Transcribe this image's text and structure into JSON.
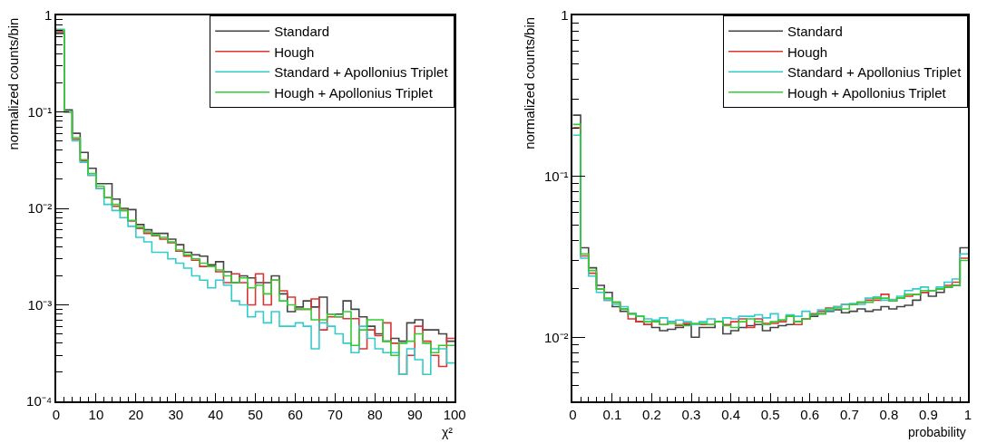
{
  "chart_data": [
    {
      "type": "histogram",
      "xlabel": "χ²",
      "ylabel": "normalized counts/bin",
      "log": "y",
      "legend": "top right",
      "grid": false,
      "bins": [
        0,
        2,
        4,
        6,
        8,
        10,
        12,
        14,
        16,
        18,
        20,
        22,
        24,
        26,
        28,
        30,
        32,
        34,
        36,
        38,
        40,
        42,
        44,
        46,
        48,
        50,
        52,
        54,
        56,
        58,
        60,
        62,
        64,
        66,
        68,
        70,
        72,
        74,
        76,
        78,
        80,
        82,
        84,
        86,
        88,
        90,
        92,
        94,
        96,
        98,
        100
      ],
      "xlim": [
        0,
        100
      ],
      "xticks": [
        0,
        10,
        20,
        30,
        40,
        50,
        60,
        70,
        80,
        90,
        100
      ],
      "ylim": [
        0.0001,
        1
      ],
      "yticks": [
        {
          "value": 0.0001,
          "label": "10⁻⁴"
        },
        {
          "value": 0.001,
          "label": "10⁻³"
        },
        {
          "value": 0.01,
          "label": "10⁻²"
        },
        {
          "value": 0.1,
          "label": "10⁻¹"
        },
        1
      ],
      "series": [
        {
          "name": "Standard",
          "color": "#444444",
          "values": [
            0.65,
            0.105,
            0.06,
            0.038,
            0.026,
            0.018,
            0.018,
            0.0125,
            0.01,
            0.0097,
            0.0068,
            0.006,
            0.0055,
            0.0055,
            0.0048,
            0.0042,
            0.0035,
            0.0033,
            0.0032,
            0.0026,
            0.0028,
            0.0022,
            0.0017,
            0.002,
            0.0019,
            0.0017,
            0.0017,
            0.002,
            0.0013,
            0.00085,
            0.00095,
            0.0011,
            0.00095,
            0.0012,
            0.0008,
            0.0008,
            0.0011,
            0.0009,
            0.00075,
            0.0006,
            0.0005,
            0.00042,
            0.00045,
            0.00042,
            0.00065,
            0.0007,
            0.00055,
            0.00055,
            0.0005,
            0.00042
          ]
        },
        {
          "name": "Hough",
          "color": "#dd3333",
          "values": [
            0.68,
            0.1,
            0.052,
            0.031,
            0.022,
            0.016,
            0.013,
            0.0105,
            0.0095,
            0.0074,
            0.0062,
            0.0055,
            0.0052,
            0.0048,
            0.0044,
            0.0036,
            0.0032,
            0.0029,
            0.0025,
            0.0025,
            0.0022,
            0.0017,
            0.0021,
            0.0017,
            0.001,
            0.0021,
            0.001,
            0.0018,
            0.0014,
            0.0012,
            0.0009,
            0.0009,
            0.00115,
            0.00055,
            0.00075,
            0.00075,
            0.00072,
            0.00072,
            0.00035,
            0.00055,
            0.00048,
            0.00065,
            0.0004,
            0.00019,
            0.0003,
            0.0006,
            0.00042,
            0.0003,
            0.00023,
            0.00045
          ]
        },
        {
          "name": "Standard + Apollonius Triplet",
          "color": "#33cccc",
          "values": [
            0.72,
            0.1,
            0.05,
            0.03,
            0.022,
            0.016,
            0.011,
            0.0095,
            0.008,
            0.0065,
            0.005,
            0.0045,
            0.0035,
            0.0035,
            0.003,
            0.0027,
            0.0024,
            0.002,
            0.0018,
            0.0015,
            0.0018,
            0.0016,
            0.0011,
            0.001,
            0.00075,
            0.00085,
            0.00065,
            0.00085,
            0.0006,
            0.0006,
            0.00065,
            0.0006,
            0.00035,
            0.00065,
            0.0006,
            0.0005,
            0.0004,
            0.00032,
            0.0006,
            0.00045,
            0.00035,
            0.00032,
            0.00032,
            0.00019,
            0.00035,
            0.00027,
            0.00019,
            0.00035,
            0.00035,
            0.00025
          ]
        },
        {
          "name": "Hough + Apollonius Triplet",
          "color": "#33cc33",
          "values": [
            0.7,
            0.1,
            0.054,
            0.032,
            0.023,
            0.017,
            0.013,
            0.011,
            0.0095,
            0.0075,
            0.0064,
            0.0057,
            0.0053,
            0.005,
            0.0045,
            0.0037,
            0.0033,
            0.003,
            0.0027,
            0.0025,
            0.0023,
            0.002,
            0.0017,
            0.0019,
            0.0015,
            0.0016,
            0.0013,
            0.0018,
            0.0011,
            0.001,
            0.0009,
            0.0009,
            0.0007,
            0.0007,
            0.0008,
            0.00075,
            0.00085,
            0.00038,
            0.00055,
            0.0007,
            0.0007,
            0.00042,
            0.0003,
            0.0004,
            0.00042,
            0.0005,
            0.0004,
            0.00032,
            0.00038,
            0.00038
          ]
        }
      ]
    },
    {
      "type": "histogram",
      "xlabel": "probability",
      "ylabel": "normalized counts/bin",
      "log": "y",
      "legend": "top right",
      "grid": false,
      "bins": [
        0,
        0.02,
        0.04,
        0.06,
        0.08,
        0.1,
        0.12,
        0.14,
        0.16,
        0.18,
        0.2,
        0.22,
        0.24,
        0.26,
        0.28,
        0.3,
        0.32,
        0.34,
        0.36,
        0.38,
        0.4,
        0.42,
        0.44,
        0.46,
        0.48,
        0.5,
        0.52,
        0.54,
        0.56,
        0.58,
        0.6,
        0.62,
        0.64,
        0.66,
        0.68,
        0.7,
        0.72,
        0.74,
        0.76,
        0.78,
        0.8,
        0.82,
        0.84,
        0.86,
        0.88,
        0.9,
        0.92,
        0.94,
        0.96,
        0.98,
        1
      ],
      "xlim": [
        0,
        1
      ],
      "xticks": [
        0,
        0.1,
        0.2,
        0.3,
        0.4,
        0.5,
        0.6,
        0.7,
        0.8,
        0.9,
        1
      ],
      "ylim": [
        0.004,
        1
      ],
      "yticks": [
        {
          "value": 0.01,
          "label": "10⁻²"
        },
        {
          "value": 0.1,
          "label": "10⁻¹"
        },
        1
      ],
      "series": [
        {
          "name": "Standard",
          "color": "#444444",
          "values": [
            0.24,
            0.036,
            0.027,
            0.021,
            0.019,
            0.0155,
            0.0145,
            0.014,
            0.0125,
            0.012,
            0.0115,
            0.011,
            0.0112,
            0.0115,
            0.012,
            0.01,
            0.0115,
            0.0115,
            0.0125,
            0.0105,
            0.011,
            0.0115,
            0.0118,
            0.012,
            0.011,
            0.0115,
            0.0118,
            0.012,
            0.0125,
            0.013,
            0.0135,
            0.014,
            0.0145,
            0.0148,
            0.0142,
            0.0145,
            0.015,
            0.0145,
            0.0148,
            0.0155,
            0.015,
            0.0155,
            0.0158,
            0.017,
            0.019,
            0.018,
            0.019,
            0.0205,
            0.021,
            0.036
          ]
        },
        {
          "name": "Hough",
          "color": "#dd3333",
          "values": [
            0.2,
            0.032,
            0.025,
            0.02,
            0.017,
            0.0165,
            0.015,
            0.013,
            0.0125,
            0.012,
            0.0125,
            0.012,
            0.0125,
            0.0118,
            0.0122,
            0.012,
            0.012,
            0.012,
            0.0125,
            0.012,
            0.0125,
            0.013,
            0.0115,
            0.013,
            0.0122,
            0.0122,
            0.0125,
            0.0135,
            0.012,
            0.013,
            0.014,
            0.0145,
            0.0152,
            0.0155,
            0.016,
            0.016,
            0.0165,
            0.017,
            0.017,
            0.0185,
            0.0168,
            0.0175,
            0.018,
            0.0185,
            0.019,
            0.0195,
            0.02,
            0.021,
            0.022,
            0.031
          ]
        },
        {
          "name": "Standard + Apollonius Triplet",
          "color": "#33cccc",
          "values": [
            0.18,
            0.031,
            0.024,
            0.019,
            0.017,
            0.016,
            0.0155,
            0.014,
            0.0135,
            0.013,
            0.0128,
            0.0132,
            0.0125,
            0.0128,
            0.0125,
            0.012,
            0.0125,
            0.013,
            0.0125,
            0.0132,
            0.013,
            0.0135,
            0.0135,
            0.0138,
            0.0132,
            0.014,
            0.0128,
            0.0138,
            0.0135,
            0.0145,
            0.0138,
            0.0148,
            0.0147,
            0.0155,
            0.016,
            0.0162,
            0.016,
            0.0175,
            0.0178,
            0.017,
            0.0172,
            0.018,
            0.0195,
            0.02,
            0.0205,
            0.0195,
            0.0205,
            0.022,
            0.023,
            0.033
          ]
        },
        {
          "name": "Hough + Apollonius Triplet",
          "color": "#33cc33",
          "values": [
            0.21,
            0.033,
            0.026,
            0.02,
            0.0175,
            0.0165,
            0.015,
            0.014,
            0.0135,
            0.0125,
            0.0125,
            0.012,
            0.0122,
            0.012,
            0.0118,
            0.0122,
            0.0122,
            0.012,
            0.0125,
            0.0118,
            0.0115,
            0.0125,
            0.013,
            0.0125,
            0.012,
            0.0125,
            0.0128,
            0.0135,
            0.0125,
            0.013,
            0.0138,
            0.014,
            0.015,
            0.0152,
            0.015,
            0.016,
            0.0165,
            0.0165,
            0.0175,
            0.0175,
            0.0168,
            0.0175,
            0.0185,
            0.0185,
            0.0195,
            0.0195,
            0.02,
            0.0205,
            0.021,
            0.03
          ]
        }
      ]
    }
  ]
}
